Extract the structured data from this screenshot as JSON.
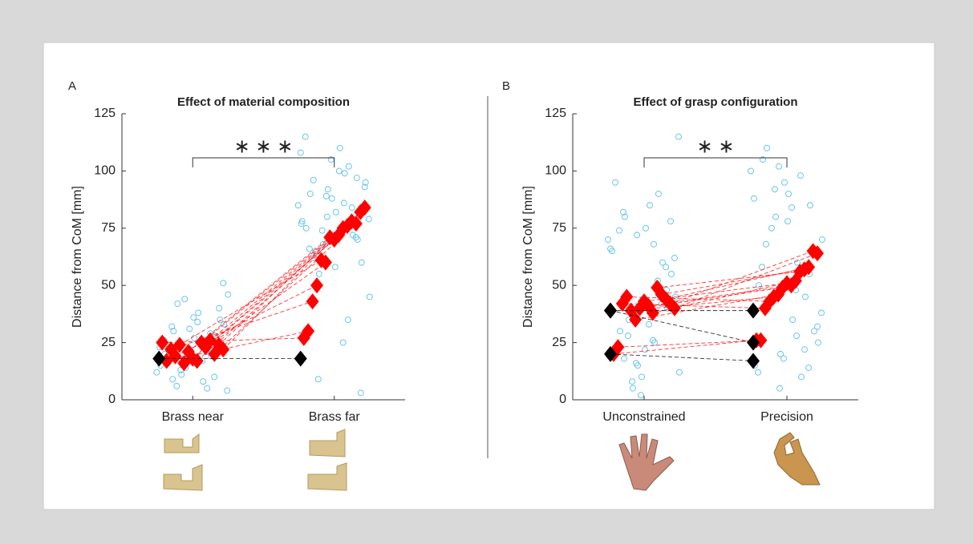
{
  "chart_data": [
    {
      "type": "paired",
      "panel_label": "A",
      "title": "Effect of material composition",
      "ylabel": "Distance from CoM [mm]",
      "categories": [
        "Brass near",
        "Brass far"
      ],
      "ylim": [
        0,
        125
      ],
      "yticks": [
        0,
        25,
        50,
        75,
        100,
        125
      ],
      "significance": "∗ ∗ ∗",
      "raw": {
        "color": "#5bc0eb",
        "values": [
          [
            12,
            18,
            25,
            30,
            8,
            15,
            22,
            35,
            42,
            5,
            20,
            27,
            33,
            11,
            19,
            24,
            38,
            46,
            14,
            28,
            9,
            17,
            23,
            31,
            40,
            6,
            21,
            26,
            36,
            51,
            13,
            29,
            16,
            34,
            4,
            44,
            10,
            32,
            25,
            19
          ],
          [
            85,
            92,
            70,
            65,
            99,
            78,
            88,
            60,
            55,
            102,
            75,
            82,
            95,
            68,
            72,
            90,
            110,
            45,
            80,
            97,
            62,
            86,
            77,
            105,
            3,
            9,
            35,
            115,
            58,
            93,
            74,
            84,
            66,
            100,
            79,
            89,
            71,
            96,
            25,
            108
          ]
        ]
      },
      "participants": {
        "color": "#ff0000",
        "pairs": [
          [
            22,
            84
          ],
          [
            24,
            82
          ],
          [
            20,
            77
          ],
          [
            26,
            78
          ],
          [
            23,
            76
          ],
          [
            25,
            75
          ],
          [
            17,
            72
          ],
          [
            18,
            70
          ],
          [
            21,
            71
          ],
          [
            16,
            60
          ],
          [
            24,
            61
          ],
          [
            19,
            50
          ],
          [
            22,
            43
          ],
          [
            17,
            30
          ],
          [
            25,
            27
          ]
        ]
      },
      "excluded": {
        "color": "#000000",
        "pairs": [
          [
            18,
            18
          ]
        ]
      }
    },
    {
      "type": "paired",
      "panel_label": "B",
      "title": "Effect of grasp configuration",
      "ylabel": "Distance from CoM [mm]",
      "categories": [
        "Unconstrained",
        "Precision"
      ],
      "ylim": [
        0,
        125
      ],
      "yticks": [
        0,
        25,
        50,
        75,
        100,
        125
      ],
      "significance": "∗ ∗",
      "raw": {
        "color": "#5bc0eb",
        "values": [
          [
            70,
            15,
            40,
            80,
            25,
            65,
            10,
            55,
            35,
            90,
            20,
            75,
            45,
            5,
            60,
            30,
            85,
            12,
            72,
            48,
            18,
            68,
            38,
            2,
            78,
            28,
            52,
            95,
            22,
            62,
            8,
            42,
            74,
            33,
            115,
            16,
            58,
            82,
            26,
            66
          ],
          [
            100,
            20,
            85,
            40,
            60,
            15,
            95,
            30,
            75,
            10,
            50,
            90,
            25,
            80,
            45,
            105,
            35,
            70,
            5,
            55,
            110,
            28,
            88,
            18,
            65,
            42,
            98,
            12,
            78,
            32,
            92,
            22,
            58,
            84,
            38,
            102,
            14,
            68,
            48,
            26
          ]
        ]
      },
      "participants": {
        "color": "#ff0000",
        "pairs": [
          [
            40,
            64
          ],
          [
            42,
            65
          ],
          [
            44,
            58
          ],
          [
            46,
            57
          ],
          [
            49,
            56
          ],
          [
            38,
            52
          ],
          [
            41,
            50
          ],
          [
            43,
            51
          ],
          [
            40,
            49
          ],
          [
            35,
            46
          ],
          [
            39,
            45
          ],
          [
            45,
            43
          ],
          [
            42,
            40
          ],
          [
            23,
            26
          ],
          [
            20,
            26
          ]
        ]
      },
      "excluded": {
        "color": "#000000",
        "pairs": [
          [
            39,
            39
          ],
          [
            39,
            25
          ],
          [
            20,
            17
          ]
        ]
      }
    }
  ]
}
